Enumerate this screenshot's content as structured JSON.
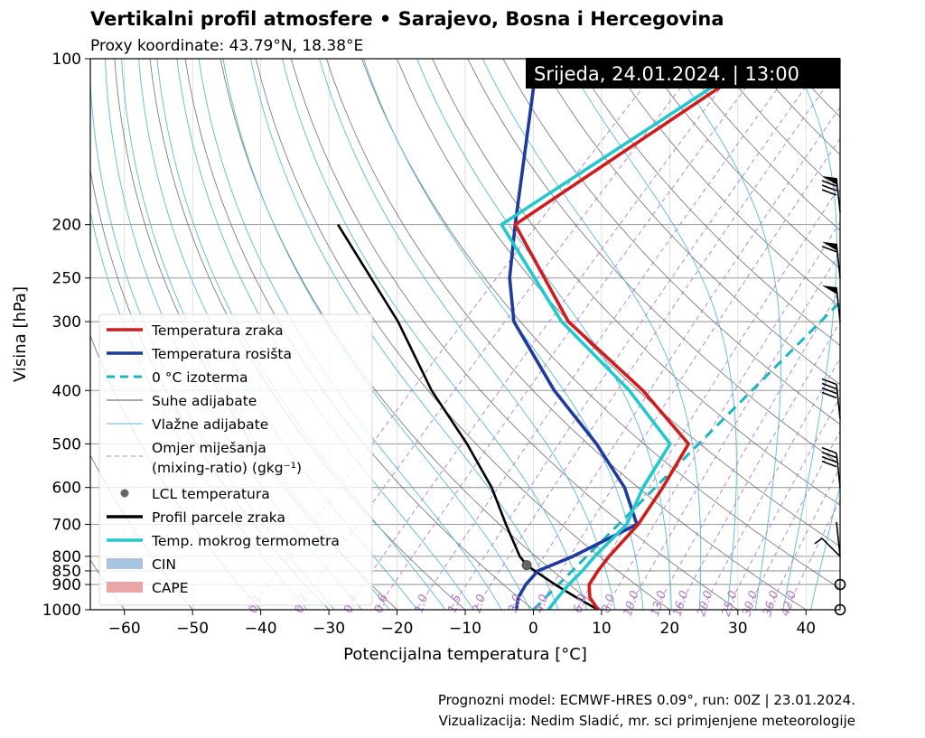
{
  "header": {
    "title": "Vertikalni profil atmosfere • Sarajevo, Bosna i Hercegovina",
    "subtitle": "Proxy koordinate: 43.79°N, 18.38°E",
    "valid_time": "Srijeda, 24.01.2024. | 13:00"
  },
  "footer": {
    "line1": "Prognozni model: ECMWF-HRES 0.09°, run: 00Z | 23.01.2024.",
    "line2": "Vizualizacija: Nedim Sladić, mr. sci primjenjene meteorologije"
  },
  "colors": {
    "temperature": "#d01c1c",
    "dewpoint": "#1f3a9e",
    "isotherm0": "#1fb5c0",
    "dry_adiabat": "#555555",
    "moist_adiabat": "#5ab9d8",
    "mixing_ratio": "#b07bc8",
    "lcl": "#666666",
    "parcel": "#000000",
    "wetbulb": "#22c8cc",
    "cin": "#a8c4de",
    "cape": "#e8a6a6"
  },
  "chart_data": {
    "type": "line",
    "title": "Vertikalni profil atmosfere • Sarajevo, Bosna i Hercegovina",
    "xlabel": "Potencijalna temperatura [°C]",
    "ylabel": "Visina [hPa]",
    "xlim": [
      -65,
      45
    ],
    "ylim": [
      1000,
      100
    ],
    "y_scale": "log",
    "grid": true,
    "legend_position": "lower-left",
    "x_ticks": [
      -60,
      -50,
      -40,
      -30,
      -20,
      -10,
      0,
      10,
      20,
      30,
      40
    ],
    "y_ticks": [
      100,
      200,
      250,
      300,
      400,
      500,
      600,
      700,
      800,
      850,
      900,
      1000
    ],
    "mixing_ratio_labels": [
      "0.1",
      "0.2",
      "0.4",
      "0.6",
      "1.0",
      "1.5",
      "2.0",
      "3.0",
      "4.0",
      "6.0",
      "8.0",
      "10.0",
      "13.0",
      "16.0",
      "20.0",
      "25.0",
      "30.0",
      "36.0",
      "42.0"
    ],
    "series": [
      {
        "name": "Temperatura zraka",
        "pressure": [
          1000,
          950,
          900,
          850,
          800,
          700,
          600,
          500,
          400,
          300,
          200,
          100
        ],
        "values": [
          9.5,
          6.5,
          4.5,
          3.8,
          3.3,
          2.9,
          1.1,
          -1.5,
          -16,
          -37,
          -59,
          -47
        ]
      },
      {
        "name": "Temperatura rosišta",
        "pressure": [
          1000,
          950,
          900,
          850,
          800,
          700,
          600,
          500,
          400,
          300,
          250,
          200,
          100
        ],
        "values": [
          -2.5,
          -4,
          -4.8,
          -5,
          -2,
          2.7,
          -4.5,
          -15,
          -29,
          -45,
          -52,
          -59,
          -80
        ]
      },
      {
        "name": "Temp. mokrog termometra",
        "pressure": [
          1000,
          950,
          900,
          850,
          800,
          700,
          600,
          500,
          400,
          300,
          200,
          100
        ],
        "values": [
          2.2,
          1.8,
          1.5,
          1.5,
          1.2,
          1.2,
          -1.8,
          -4.2,
          -18,
          -38,
          -61,
          -48
        ]
      },
      {
        "name": "Profil parcele zraka",
        "pressure": [
          1000,
          950,
          900,
          850,
          830,
          800,
          700,
          600,
          500,
          400,
          300,
          200
        ],
        "values": [
          9.5,
          4.5,
          -0.5,
          -5.5,
          -7.5,
          -9.8,
          -16.5,
          -24,
          -34,
          -47,
          -62,
          -85
        ]
      }
    ],
    "lcl": {
      "name": "LCL temperatura",
      "pressure": 830,
      "value": -7.5
    },
    "wind_barbs": [
      {
        "pressure": 1000,
        "symbol": "calm"
      },
      {
        "pressure": 900,
        "symbol": "calm"
      },
      {
        "pressure": 800,
        "speed_kt": 5,
        "flags": "half"
      },
      {
        "pressure": 600,
        "speed_kt": 40
      },
      {
        "pressure": 450,
        "speed_kt": 40
      },
      {
        "pressure": 300,
        "speed_kt": 50
      },
      {
        "pressure": 250,
        "speed_kt": 60
      },
      {
        "pressure": 190,
        "speed_kt": 80
      }
    ],
    "legend": [
      {
        "label": "Temperatura zraka",
        "kind": "line",
        "color": "#d01c1c"
      },
      {
        "label": "Temperatura rosišta",
        "kind": "line",
        "color": "#1f3a9e"
      },
      {
        "label": "0 °C izoterma",
        "kind": "dashed",
        "color": "#1fb5c0"
      },
      {
        "label": "Suhe adijabate",
        "kind": "thin",
        "color": "#555555"
      },
      {
        "label": "Vlažne adijabate",
        "kind": "thin",
        "color": "#5ab9d8"
      },
      {
        "label": "Omjer miješanja",
        "label2": "(mixing-ratio) (gkg⁻¹)",
        "kind": "dashthin",
        "color": "#b07bc8"
      },
      {
        "label": "LCL temperatura",
        "kind": "dot",
        "color": "#666666"
      },
      {
        "label": "Profil parcele zraka",
        "kind": "line",
        "color": "#000000"
      },
      {
        "label": "Temp. mokrog termometra",
        "kind": "line",
        "color": "#22c8cc"
      },
      {
        "label": "CIN",
        "kind": "patch",
        "color": "#a8c4de"
      },
      {
        "label": "CAPE",
        "kind": "patch",
        "color": "#e8a6a6"
      }
    ]
  }
}
